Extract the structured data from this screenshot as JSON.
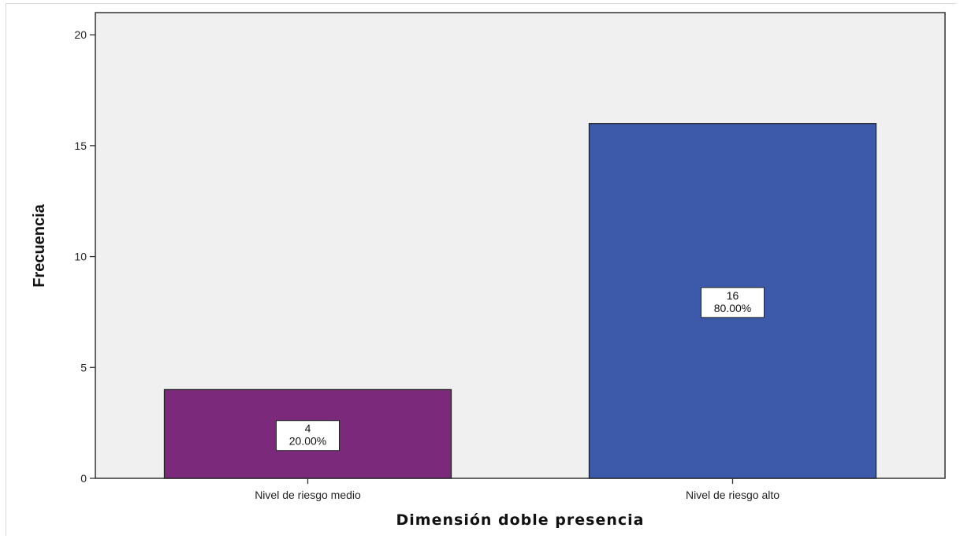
{
  "chart_data": {
    "type": "bar",
    "title": "",
    "xlabel": "Dimensión doble presencia",
    "ylabel": "Frecuencia",
    "categories": [
      "Nivel de riesgo medio",
      "Nivel de riesgo alto"
    ],
    "values": [
      4,
      16
    ],
    "percent_labels": [
      "20.00%",
      "80.00%"
    ],
    "colors": [
      "#7b2a7b",
      "#3c59aa"
    ],
    "ylim": [
      0,
      21
    ],
    "yticks": [
      0,
      5,
      10,
      15,
      20
    ],
    "grid": false,
    "plot_background": "#f0f0f0"
  }
}
